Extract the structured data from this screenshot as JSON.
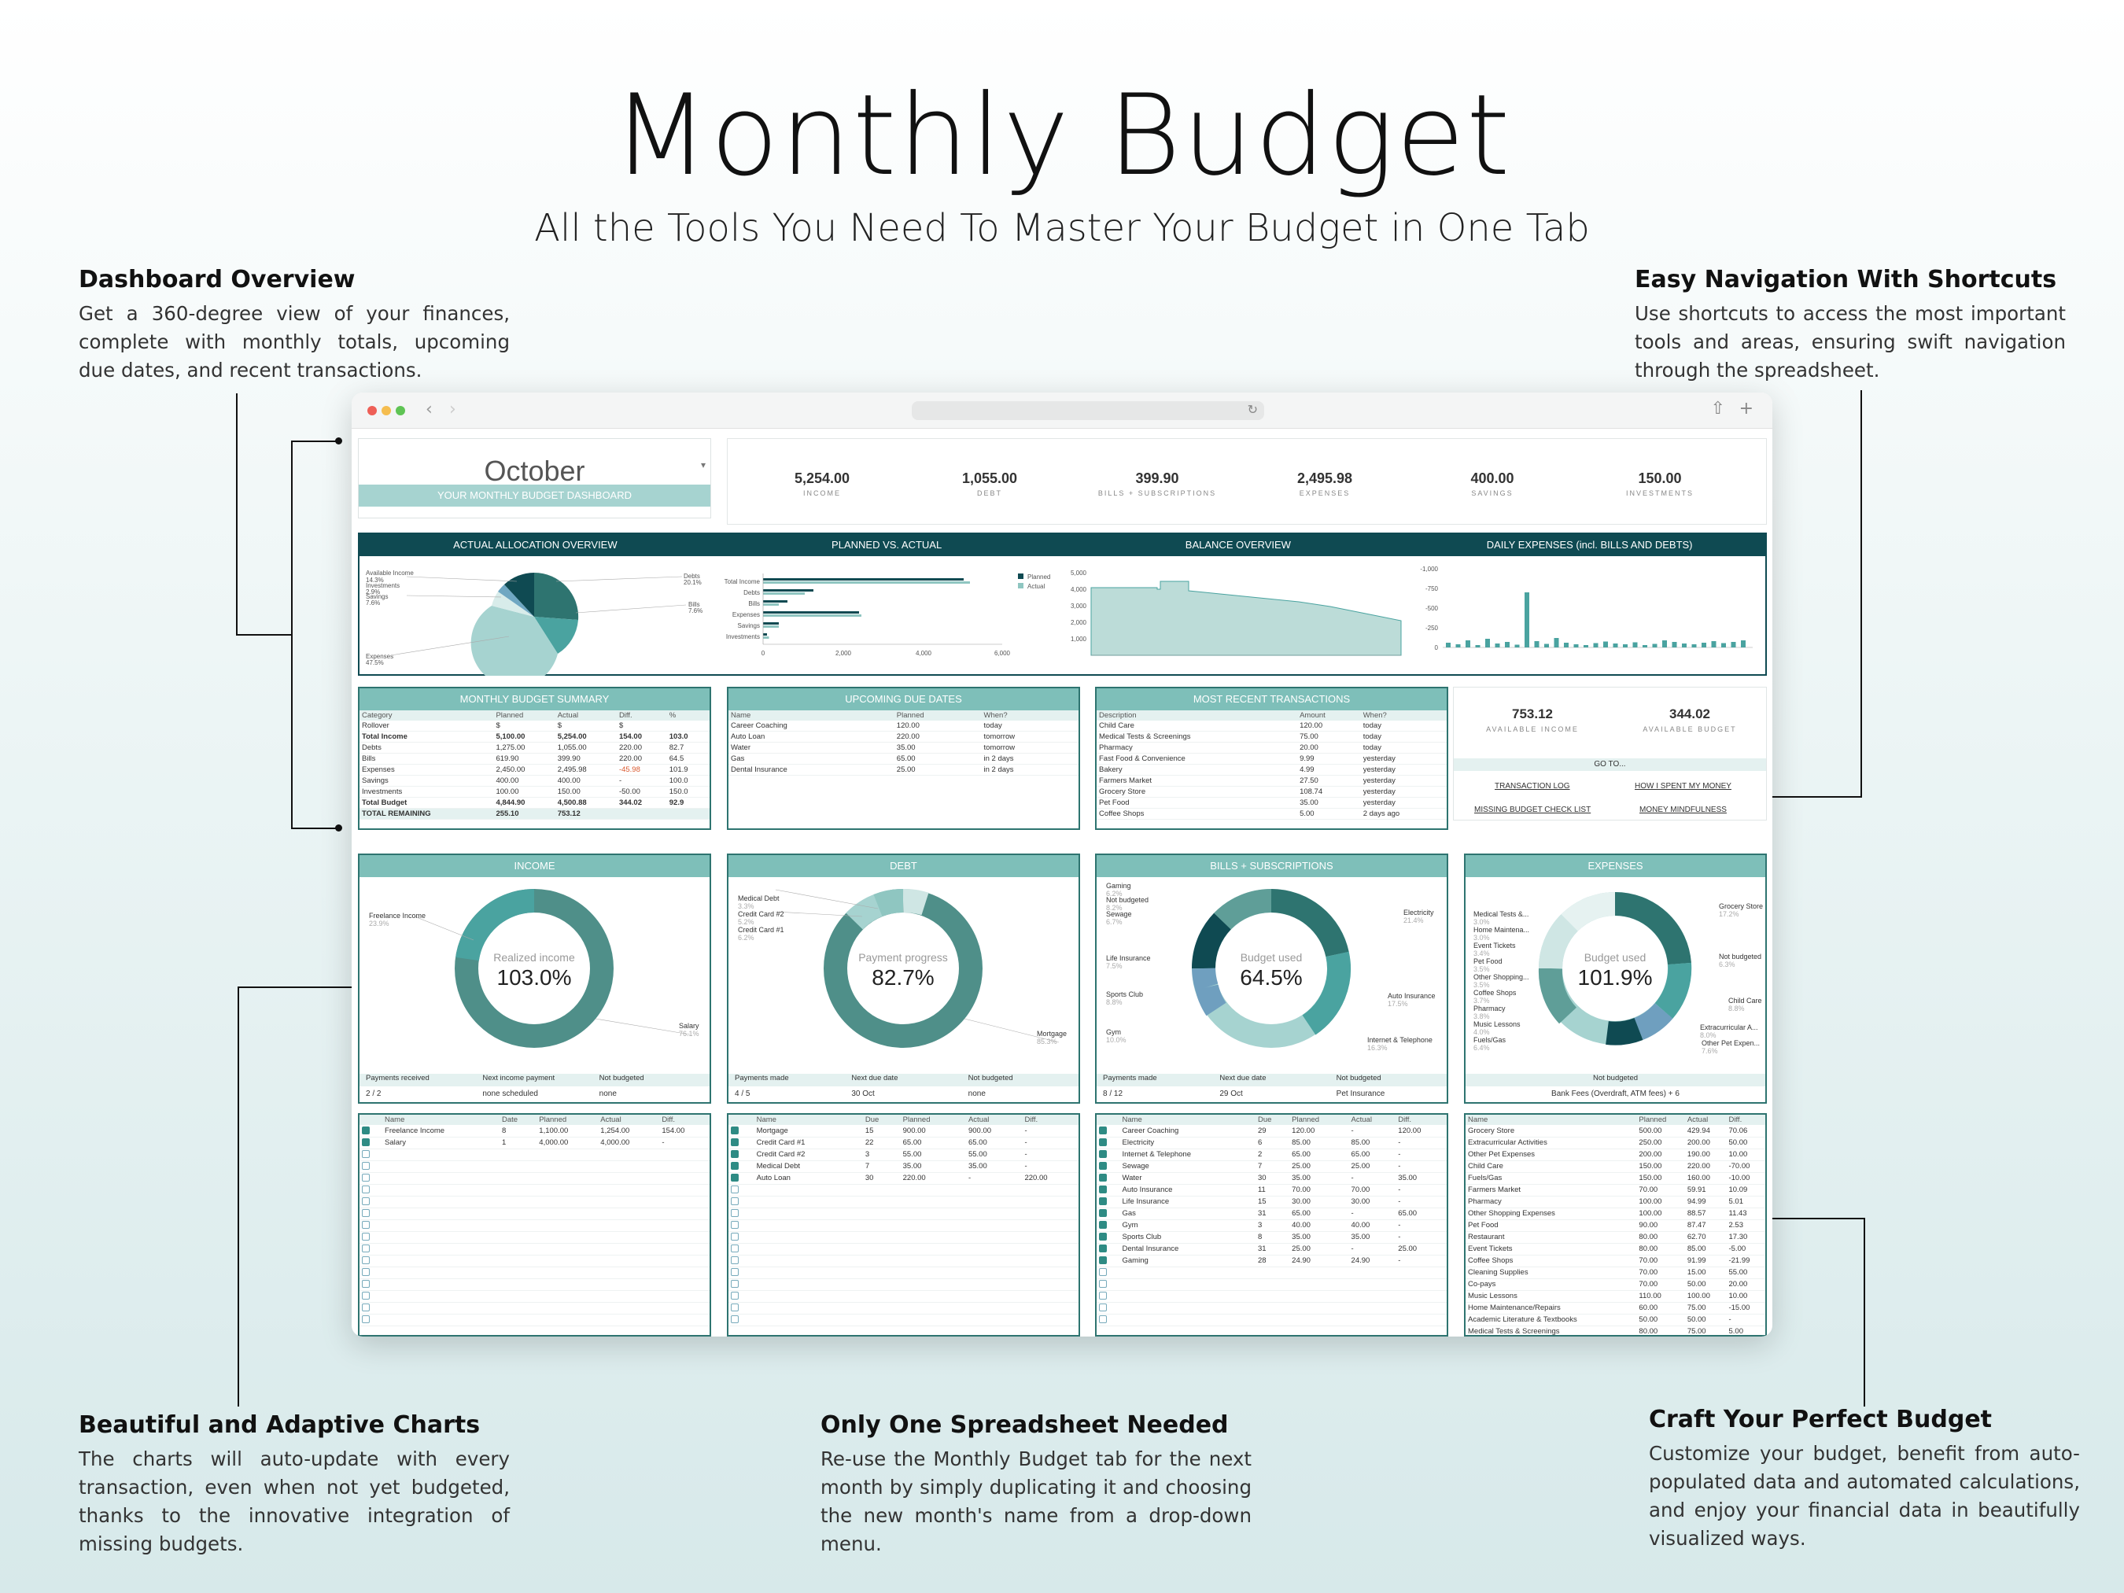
{
  "hero": {
    "title": "Monthly Budget",
    "subtitle": "All the Tools You Need To Master Your Budget in One Tab"
  },
  "callouts": {
    "dashboard": {
      "title": "Dashboard Overview",
      "text": "Get a 360-degree view of your finances, complete with monthly totals, upcoming due dates, and recent transactions."
    },
    "navigation": {
      "title": "Easy Navigation With Shortcuts",
      "text": "Use shortcuts to access the most important tools and areas, ensuring swift navigation through the spreadsheet."
    },
    "charts": {
      "title": "Beautiful and Adaptive Charts",
      "text": "The charts will auto-update with every transaction, even when not yet budgeted, thanks to the innovative integration of missing budgets."
    },
    "spreadsheet": {
      "title": "Only One Spreadsheet Needed",
      "text": "Re-use the Monthly Budget tab for the next month by simply duplicating it and choosing the new month's name from a drop-down menu."
    },
    "craft": {
      "title": "Craft Your Perfect Budget",
      "text": "Customize your budget, benefit from auto-populated data and automated calculations, and enjoy your financial data in beautifully visualized ways."
    }
  },
  "dashboard": {
    "month": "October",
    "month_band": "YOUR MONTHLY BUDGET DASHBOARD",
    "kpis": [
      {
        "value": "5,254.00",
        "label": "INCOME"
      },
      {
        "value": "1,055.00",
        "label": "DEBT"
      },
      {
        "value": "399.90",
        "label": "BILLS + SUBSCRIPTIONS"
      },
      {
        "value": "2,495.98",
        "label": "EXPENSES"
      },
      {
        "value": "400.00",
        "label": "SAVINGS"
      },
      {
        "value": "150.00",
        "label": "INVESTMENTS"
      }
    ],
    "chart_titles": [
      "ACTUAL ALLOCATION OVERVIEW",
      "PLANNED VS. ACTUAL",
      "BALANCE OVERVIEW",
      "DAILY EXPENSES (incl. BILLS AND DEBTS)"
    ],
    "summary": {
      "title": "MONTHLY BUDGET SUMMARY",
      "headers": [
        "Category",
        "Planned",
        "Actual",
        "Diff.",
        "%"
      ],
      "rows": [
        [
          "Rollover",
          "$",
          "$",
          "$",
          ""
        ],
        [
          "Total Income",
          "5,100.00",
          "5,254.00",
          "154.00",
          "103.0"
        ],
        [
          "Debts",
          "1,275.00",
          "1,055.00",
          "220.00",
          "82.7"
        ],
        [
          "Bills",
          "619.90",
          "399.90",
          "220.00",
          "64.5"
        ],
        [
          "Expenses",
          "2,450.00",
          "2,495.98",
          "-45.98",
          "101.9"
        ],
        [
          "Savings",
          "400.00",
          "400.00",
          "-",
          "100.0"
        ],
        [
          "Investments",
          "100.00",
          "150.00",
          "-50.00",
          "150.0"
        ],
        [
          "Total Budget",
          "4,844.90",
          "4,500.88",
          "344.02",
          "92.9"
        ],
        [
          "TOTAL REMAINING",
          "255.10",
          "753.12",
          "",
          ""
        ]
      ]
    },
    "due": {
      "title": "UPCOMING DUE DATES",
      "headers": [
        "Name",
        "Planned",
        "When?"
      ],
      "rows": [
        [
          "Career Coaching",
          "120.00",
          "today"
        ],
        [
          "Auto Loan",
          "220.00",
          "tomorrow"
        ],
        [
          "Water",
          "35.00",
          "tomorrow"
        ],
        [
          "Gas",
          "65.00",
          "in 2 days"
        ],
        [
          "Dental Insurance",
          "25.00",
          "in 2 days"
        ]
      ]
    },
    "recent": {
      "title": "MOST RECENT TRANSACTIONS",
      "headers": [
        "Description",
        "Amount",
        "When?"
      ],
      "rows": [
        [
          "Child Care",
          "120.00",
          "today"
        ],
        [
          "Medical Tests & Screenings",
          "75.00",
          "today"
        ],
        [
          "Pharmacy",
          "20.00",
          "today"
        ],
        [
          "Fast Food & Convenience",
          "9.99",
          "yesterday"
        ],
        [
          "Bakery",
          "4.99",
          "yesterday"
        ],
        [
          "Farmers Market",
          "27.50",
          "yesterday"
        ],
        [
          "Grocery Store",
          "108.74",
          "yesterday"
        ],
        [
          "Pet Food",
          "35.00",
          "yesterday"
        ],
        [
          "Coffee Shops",
          "5.00",
          "2 days ago"
        ]
      ]
    },
    "available": {
      "income_value": "753.12",
      "income_label": "AVAILABLE INCOME",
      "budget_value": "344.02",
      "budget_label": "AVAILABLE BUDGET",
      "goto": "GO TO...",
      "links": [
        "TRANSACTION LOG",
        "HOW I SPENT MY MONEY",
        "MISSING BUDGET CHECK LIST",
        "MONEY MINDFULNESS"
      ]
    },
    "donuts": [
      {
        "title": "INCOME",
        "center_label": "Realized income",
        "center_value": "103.0%",
        "foot_headers": [
          "Payments received",
          "Next income payment",
          "Not budgeted"
        ],
        "foot_values": [
          "2 / 2",
          "none scheduled",
          "none"
        ]
      },
      {
        "title": "DEBT",
        "center_label": "Payment progress",
        "center_value": "82.7%",
        "foot_headers": [
          "Payments made",
          "Next due date",
          "Not budgeted"
        ],
        "foot_values": [
          "4 / 5",
          "30 Oct",
          "none"
        ]
      },
      {
        "title": "BILLS + SUBSCRIPTIONS",
        "center_label": "Budget used",
        "center_value": "64.5%",
        "foot_headers": [
          "Payments made",
          "Next due date",
          "Not budgeted"
        ],
        "foot_values": [
          "8 / 12",
          "29 Oct",
          "Pet Insurance"
        ]
      },
      {
        "title": "EXPENSES",
        "center_label": "Budget used",
        "center_value": "101.9%",
        "foot_headers": [
          "Not budgeted"
        ],
        "foot_values": [
          "Bank Fees (Overdraft, ATM fees) + 6"
        ]
      }
    ],
    "lists": {
      "income": {
        "headers": [
          "Name",
          "Date",
          "Planned",
          "Actual",
          "Diff."
        ],
        "rows": [
          [
            "Freelance Income",
            "8",
            "1,100.00",
            "1,254.00",
            "154.00"
          ],
          [
            "Salary",
            "1",
            "4,000.00",
            "4,000.00",
            "-"
          ]
        ]
      },
      "debt": {
        "headers": [
          "Name",
          "Due",
          "Planned",
          "Actual",
          "Diff."
        ],
        "rows": [
          [
            "Mortgage",
            "15",
            "900.00",
            "900.00",
            "-"
          ],
          [
            "Credit Card #1",
            "22",
            "65.00",
            "65.00",
            "-"
          ],
          [
            "Credit Card #2",
            "3",
            "55.00",
            "55.00",
            "-"
          ],
          [
            "Medical Debt",
            "7",
            "35.00",
            "35.00",
            "-"
          ],
          [
            "Auto Loan",
            "30",
            "220.00",
            "-",
            "220.00"
          ]
        ]
      },
      "bills": {
        "headers": [
          "Name",
          "Due",
          "Planned",
          "Actual",
          "Diff."
        ],
        "rows": [
          [
            "Career Coaching",
            "29",
            "120.00",
            "-",
            "120.00"
          ],
          [
            "Electricity",
            "6",
            "85.00",
            "85.00",
            "-"
          ],
          [
            "Internet & Telephone",
            "2",
            "65.00",
            "65.00",
            "-"
          ],
          [
            "Sewage",
            "7",
            "25.00",
            "25.00",
            "-"
          ],
          [
            "Water",
            "30",
            "35.00",
            "-",
            "35.00"
          ],
          [
            "Auto Insurance",
            "11",
            "70.00",
            "70.00",
            "-"
          ],
          [
            "Life Insurance",
            "15",
            "30.00",
            "30.00",
            "-"
          ],
          [
            "Gas",
            "31",
            "65.00",
            "-",
            "65.00"
          ],
          [
            "Gym",
            "3",
            "40.00",
            "40.00",
            "-"
          ],
          [
            "Sports Club",
            "8",
            "35.00",
            "35.00",
            "-"
          ],
          [
            "Dental Insurance",
            "31",
            "25.00",
            "-",
            "25.00"
          ],
          [
            "Gaming",
            "28",
            "24.90",
            "24.90",
            "-"
          ]
        ]
      },
      "expenses": {
        "headers": [
          "Name",
          "Planned",
          "Actual",
          "Diff."
        ],
        "rows": [
          [
            "Grocery Store",
            "500.00",
            "429.94",
            "70.06"
          ],
          [
            "Extracurricular Activities",
            "250.00",
            "200.00",
            "50.00"
          ],
          [
            "Other Pet Expenses",
            "200.00",
            "190.00",
            "10.00"
          ],
          [
            "Child Care",
            "150.00",
            "220.00",
            "-70.00"
          ],
          [
            "Fuels/Gas",
            "150.00",
            "160.00",
            "-10.00"
          ],
          [
            "Farmers Market",
            "70.00",
            "59.91",
            "10.09"
          ],
          [
            "Pharmacy",
            "100.00",
            "94.99",
            "5.01"
          ],
          [
            "Other Shopping Expenses",
            "100.00",
            "88.57",
            "11.43"
          ],
          [
            "Pet Food",
            "90.00",
            "87.47",
            "2.53"
          ],
          [
            "Restaurant",
            "80.00",
            "62.70",
            "17.30"
          ],
          [
            "Event Tickets",
            "80.00",
            "85.00",
            "-5.00"
          ],
          [
            "Coffee Shops",
            "70.00",
            "91.99",
            "-21.99"
          ],
          [
            "Cleaning Supplies",
            "70.00",
            "15.00",
            "55.00"
          ],
          [
            "Co-pays",
            "70.00",
            "50.00",
            "20.00"
          ],
          [
            "Music Lessons",
            "110.00",
            "100.00",
            "10.00"
          ],
          [
            "Home Maintenance/Repairs",
            "60.00",
            "75.00",
            "-15.00"
          ],
          [
            "Academic Literature & Textbooks",
            "50.00",
            "50.00",
            "-"
          ],
          [
            "Medical Tests & Screenings",
            "80.00",
            "75.00",
            "5.00"
          ]
        ]
      }
    }
  },
  "colors": {
    "dark_teal": "#0f4a52",
    "teal": "#2e7470",
    "light_teal": "#7ebfb9",
    "pale": "#e4f1f0"
  }
}
